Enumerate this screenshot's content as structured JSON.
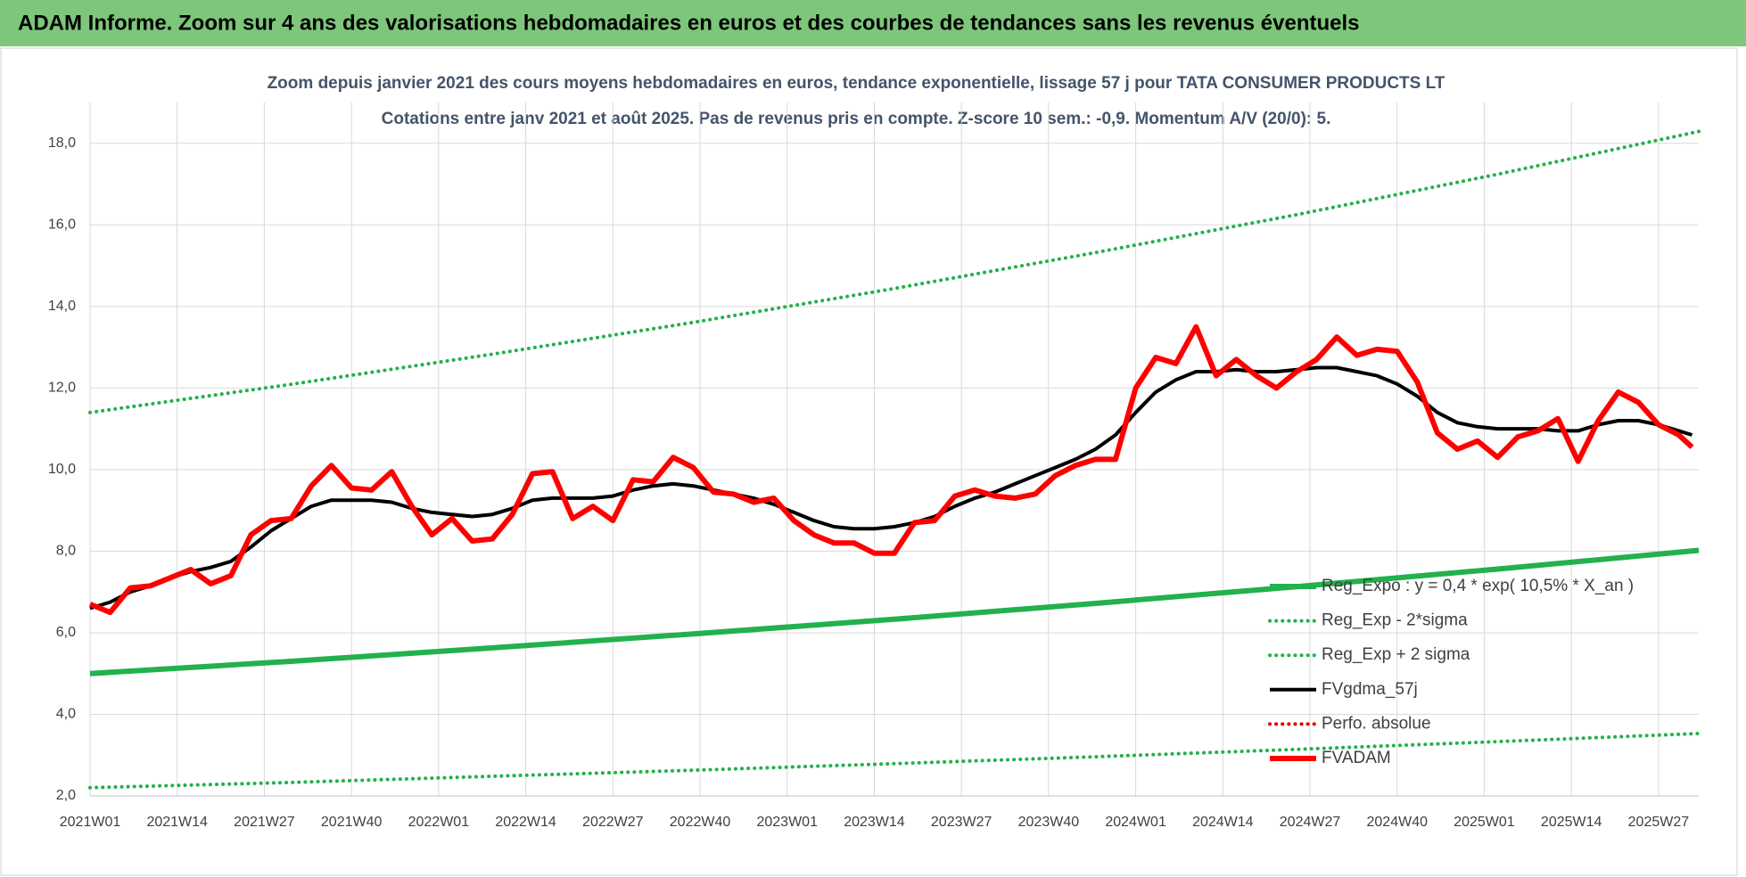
{
  "chart_data": {
    "type": "line",
    "header": "ADAM Informe. Zoom sur 4 ans des valorisations hebdomadaires en euros et des courbes de tendances sans les revenus éventuels",
    "title": "Zoom depuis janvier 2021 des cours moyens hebdomadaires en euros, tendance exponentielle, lissage 57 j pour TATA  CONSUMER PRODUCTS LT",
    "subtitle": "Cotations entre janv 2021 et août 2025.  Pas de revenus pris en compte. Z-score 10 sem.: -0,9. Momentum A/V (20/0): 5.",
    "grid": true,
    "xlim": [
      0,
      240
    ],
    "xticks": [
      {
        "value": 0,
        "label": "2021W01"
      },
      {
        "value": 13,
        "label": "2021W14"
      },
      {
        "value": 26,
        "label": "2021W27"
      },
      {
        "value": 39,
        "label": "2021W40"
      },
      {
        "value": 52,
        "label": "2022W01"
      },
      {
        "value": 65,
        "label": "2022W14"
      },
      {
        "value": 78,
        "label": "2022W27"
      },
      {
        "value": 91,
        "label": "2022W40"
      },
      {
        "value": 104,
        "label": "2023W01"
      },
      {
        "value": 117,
        "label": "2023W14"
      },
      {
        "value": 130,
        "label": "2023W27"
      },
      {
        "value": 143,
        "label": "2023W40"
      },
      {
        "value": 156,
        "label": "2024W01"
      },
      {
        "value": 169,
        "label": "2024W14"
      },
      {
        "value": 182,
        "label": "2024W27"
      },
      {
        "value": 195,
        "label": "2024W40"
      },
      {
        "value": 208,
        "label": "2025W01"
      },
      {
        "value": 221,
        "label": "2025W14"
      },
      {
        "value": 234,
        "label": "2025W27"
      }
    ],
    "ylim": [
      2,
      19
    ],
    "yticks": [
      {
        "value": 2,
        "label": "2,0"
      },
      {
        "value": 4,
        "label": "4,0"
      },
      {
        "value": 6,
        "label": "6,0"
      },
      {
        "value": 8,
        "label": "8,0"
      },
      {
        "value": 10,
        "label": "10,0"
      },
      {
        "value": 12,
        "label": "12,0"
      },
      {
        "value": 14,
        "label": "14,0"
      },
      {
        "value": 16,
        "label": "16,0"
      },
      {
        "value": 18,
        "label": "18,0"
      }
    ],
    "x": [
      0,
      3,
      6,
      9,
      12,
      15,
      18,
      21,
      24,
      27,
      30,
      33,
      36,
      39,
      42,
      45,
      48,
      51,
      54,
      57,
      60,
      63,
      66,
      69,
      72,
      75,
      78,
      81,
      84,
      87,
      90,
      93,
      96,
      99,
      102,
      105,
      108,
      111,
      114,
      117,
      120,
      123,
      126,
      129,
      132,
      135,
      138,
      141,
      144,
      147,
      150,
      153,
      156,
      159,
      162,
      165,
      168,
      171,
      174,
      177,
      180,
      183,
      186,
      189,
      192,
      195,
      198,
      201,
      204,
      207,
      210,
      213,
      216,
      219,
      222,
      225,
      228,
      231,
      234,
      237,
      239
    ],
    "series": [
      {
        "name": "Reg_Expo : y = 0,4 * exp( 10,5% *  X_an )",
        "color": "#22b14c",
        "line_style": "thick",
        "x": [
          0,
          30,
          60,
          90,
          120,
          150,
          180,
          210,
          240
        ],
        "values": [
          5.0,
          5.3,
          5.63,
          5.97,
          6.33,
          6.72,
          7.13,
          7.56,
          8.02
        ]
      },
      {
        "name": "Reg_Exp - 2*sigma",
        "color": "#22b14c",
        "line_style": "dotted",
        "x": [
          0,
          30,
          60,
          90,
          120,
          150,
          180,
          210,
          240
        ],
        "values": [
          2.2,
          2.33,
          2.48,
          2.63,
          2.79,
          2.96,
          3.14,
          3.33,
          3.53
        ]
      },
      {
        "name": "Reg_Exp + 2 sigma",
        "color": "#22b14c",
        "line_style": "dotted",
        "x": [
          0,
          30,
          60,
          90,
          120,
          150,
          180,
          210,
          240
        ],
        "values": [
          11.4,
          12.09,
          12.83,
          13.61,
          14.44,
          15.32,
          16.25,
          17.24,
          18.29
        ]
      },
      {
        "name": "FVgdma_57j",
        "color": "#000000",
        "line_style": "solid",
        "values": [
          6.6,
          6.75,
          7.0,
          7.15,
          7.35,
          7.5,
          7.6,
          7.75,
          8.1,
          8.5,
          8.8,
          9.1,
          9.25,
          9.25,
          9.25,
          9.2,
          9.05,
          8.95,
          8.9,
          8.85,
          8.9,
          9.05,
          9.25,
          9.3,
          9.3,
          9.3,
          9.35,
          9.5,
          9.6,
          9.65,
          9.6,
          9.5,
          9.4,
          9.3,
          9.15,
          8.95,
          8.75,
          8.6,
          8.55,
          8.55,
          8.6,
          8.7,
          8.85,
          9.1,
          9.3,
          9.45,
          9.65,
          9.85,
          10.05,
          10.25,
          10.5,
          10.85,
          11.4,
          11.9,
          12.2,
          12.4,
          12.4,
          12.45,
          12.4,
          12.4,
          12.45,
          12.5,
          12.5,
          12.4,
          12.3,
          12.1,
          11.8,
          11.4,
          11.15,
          11.05,
          11.0,
          11.0,
          11.0,
          10.95,
          10.95,
          11.1,
          11.2,
          11.2,
          11.1,
          10.95,
          10.85
        ]
      },
      {
        "name": "Perfo. absolue",
        "color": "#e00000",
        "line_style": "dotted",
        "x": [],
        "values": []
      },
      {
        "name": "FVADAM",
        "color": "#ff0000",
        "line_style": "thick",
        "values": [
          6.7,
          6.5,
          7.1,
          7.15,
          7.35,
          7.55,
          7.2,
          7.4,
          8.4,
          8.75,
          8.8,
          9.6,
          10.1,
          9.55,
          9.5,
          9.95,
          9.1,
          8.4,
          8.8,
          8.25,
          8.3,
          8.9,
          9.9,
          9.95,
          8.8,
          9.1,
          8.75,
          9.75,
          9.7,
          10.3,
          10.05,
          9.45,
          9.4,
          9.2,
          9.3,
          8.75,
          8.4,
          8.2,
          8.2,
          7.95,
          7.95,
          8.7,
          8.75,
          9.35,
          9.5,
          9.35,
          9.3,
          9.4,
          9.85,
          10.1,
          10.25,
          10.25,
          12.0,
          12.75,
          12.6,
          13.5,
          12.3,
          12.7,
          12.3,
          12.0,
          12.4,
          12.7,
          13.25,
          12.8,
          12.95,
          12.9,
          12.15,
          10.9,
          10.5,
          10.7,
          10.3,
          10.8,
          10.95,
          11.25,
          10.2,
          11.2,
          11.9,
          11.65,
          11.1,
          10.85,
          10.55
        ]
      }
    ]
  }
}
